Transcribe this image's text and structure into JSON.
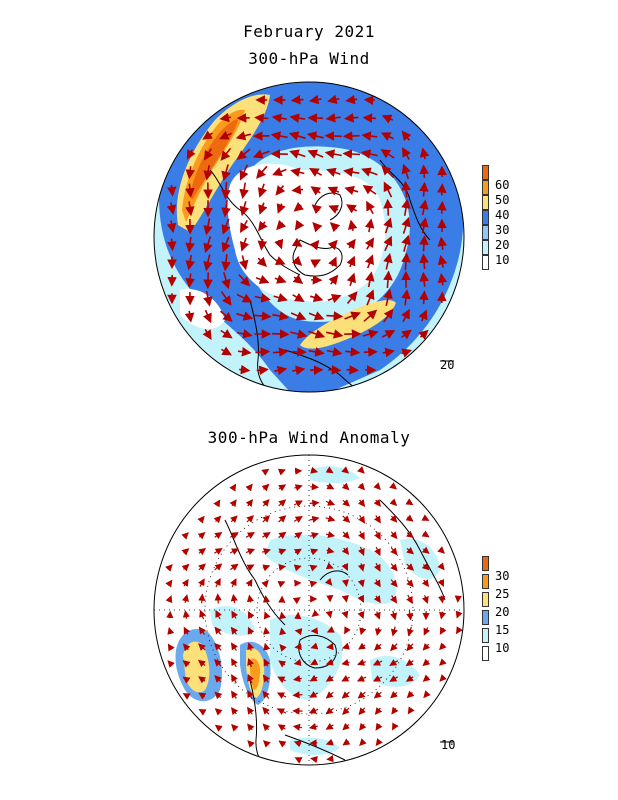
{
  "titles": {
    "main": "February 2021",
    "panel1": "300-hPa Wind",
    "panel2": "300-hPa Wind Anomaly"
  },
  "panel1": {
    "vector_scale": "20",
    "legend": {
      "labels": [
        "60",
        "50",
        "40",
        "30",
        "20",
        "10"
      ],
      "colors": [
        "#ee6a10",
        "#f99b1c",
        "#fce17a",
        "#3b7de6",
        "#93c6f6",
        "#c2f2fa",
        "#ffffff"
      ]
    }
  },
  "panel2": {
    "vector_scale": "10",
    "legend": {
      "labels": [
        "30",
        "25",
        "20",
        "15",
        "10"
      ],
      "colors": [
        "#ee6a10",
        "#f99b1c",
        "#fce17a",
        "#6aa9ee",
        "#c2f2fa",
        "#ffffff"
      ]
    }
  }
}
